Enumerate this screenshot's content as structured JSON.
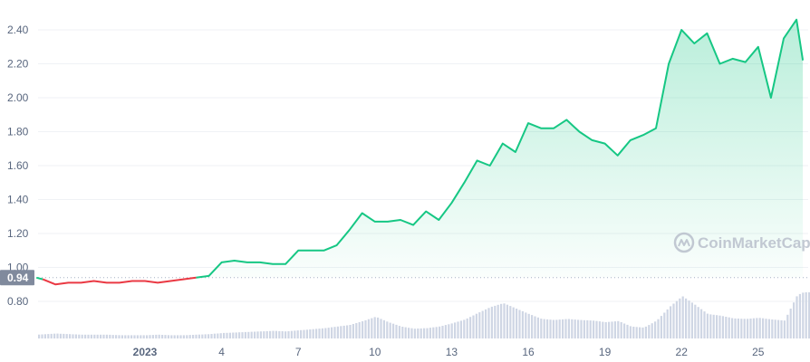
{
  "chart_data": {
    "type": "area",
    "watermark": "CoinMarketCap",
    "reference_value": 0.94,
    "reference_label": "0.94",
    "y_ticks": [
      {
        "v": 0.8,
        "label": "0.80"
      },
      {
        "v": 1.0,
        "label": "1.00"
      },
      {
        "v": 1.2,
        "label": "1.20"
      },
      {
        "v": 1.4,
        "label": "1.40"
      },
      {
        "v": 1.6,
        "label": "1.60"
      },
      {
        "v": 1.8,
        "label": "1.80"
      },
      {
        "v": 2.0,
        "label": "2.00"
      },
      {
        "v": 2.2,
        "label": "2.20"
      },
      {
        "v": 2.4,
        "label": "2.40"
      }
    ],
    "x_ticks": [
      {
        "d": 1,
        "label": "2023",
        "strong": true
      },
      {
        "d": 4,
        "label": "4"
      },
      {
        "d": 7,
        "label": "7"
      },
      {
        "d": 10,
        "label": "10"
      },
      {
        "d": 13,
        "label": "13"
      },
      {
        "d": 16,
        "label": "16"
      },
      {
        "d": 19,
        "label": "19"
      },
      {
        "d": 22,
        "label": "22"
      },
      {
        "d": 25,
        "label": "25"
      }
    ],
    "x_range_days": [
      -3.25,
      26.75
    ],
    "y_range": [
      0.74,
      2.5
    ],
    "series": [
      {
        "x": [
          -3.25,
          -3.0,
          -2.5,
          -2.0,
          -1.5,
          -1.0,
          -0.5,
          0.0,
          0.5,
          1.0,
          1.5,
          2.0,
          2.5,
          3.0,
          3.5,
          4.0,
          4.5,
          5.0,
          5.5,
          6.0,
          6.5,
          7.0,
          7.5,
          8.0,
          8.5,
          9.0,
          9.5,
          10.0,
          10.5,
          11.0,
          11.5,
          12.0,
          12.5,
          13.0,
          13.5,
          14.0,
          14.5,
          15.0,
          15.5,
          16.0,
          16.5,
          17.0,
          17.5,
          18.0,
          18.5,
          19.0,
          19.5,
          20.0,
          20.5,
          21.0,
          21.5,
          22.0,
          22.5,
          23.0,
          23.5,
          24.0,
          24.5,
          25.0,
          25.5,
          26.0,
          26.5,
          26.75
        ],
        "y": [
          0.94,
          0.93,
          0.9,
          0.91,
          0.91,
          0.92,
          0.91,
          0.91,
          0.92,
          0.92,
          0.91,
          0.92,
          0.93,
          0.94,
          0.95,
          1.03,
          1.04,
          1.03,
          1.03,
          1.02,
          1.02,
          1.1,
          1.1,
          1.1,
          1.13,
          1.22,
          1.32,
          1.27,
          1.27,
          1.28,
          1.25,
          1.33,
          1.28,
          1.38,
          1.5,
          1.63,
          1.6,
          1.73,
          1.68,
          1.85,
          1.82,
          1.82,
          1.87,
          1.8,
          1.75,
          1.73,
          1.66,
          1.75,
          1.78,
          1.82,
          2.2,
          2.4,
          2.32,
          2.38,
          2.2,
          2.23,
          2.21,
          2.3,
          2.0,
          2.35,
          2.46,
          2.22
        ]
      }
    ],
    "volume": {
      "x": [
        -3.25,
        -2.5,
        -2.0,
        -1.5,
        -1.0,
        -0.5,
        0.0,
        0.5,
        1.0,
        1.5,
        2.0,
        2.5,
        3.0,
        3.5,
        4.0,
        4.5,
        5.0,
        5.5,
        6.0,
        6.5,
        7.0,
        7.5,
        8.0,
        8.5,
        9.0,
        9.5,
        10.0,
        10.5,
        11.0,
        11.5,
        12.0,
        12.5,
        13.0,
        13.5,
        14.0,
        14.5,
        15.0,
        15.5,
        16.0,
        16.5,
        17.0,
        17.5,
        18.0,
        18.5,
        19.0,
        19.5,
        20.0,
        20.5,
        21.0,
        21.5,
        22.0,
        22.5,
        23.0,
        23.5,
        24.0,
        24.5,
        25.0,
        25.5,
        26.0,
        26.5,
        26.75
      ],
      "v": [
        0.07,
        0.09,
        0.08,
        0.07,
        0.07,
        0.07,
        0.06,
        0.06,
        0.06,
        0.07,
        0.06,
        0.06,
        0.07,
        0.08,
        0.1,
        0.11,
        0.12,
        0.13,
        0.14,
        0.13,
        0.15,
        0.17,
        0.19,
        0.22,
        0.25,
        0.32,
        0.4,
        0.3,
        0.22,
        0.18,
        0.19,
        0.22,
        0.28,
        0.35,
        0.47,
        0.58,
        0.65,
        0.55,
        0.45,
        0.36,
        0.34,
        0.36,
        0.34,
        0.33,
        0.3,
        0.32,
        0.22,
        0.2,
        0.33,
        0.58,
        0.78,
        0.62,
        0.45,
        0.42,
        0.37,
        0.36,
        0.38,
        0.35,
        0.33,
        0.8,
        0.85
      ]
    }
  }
}
